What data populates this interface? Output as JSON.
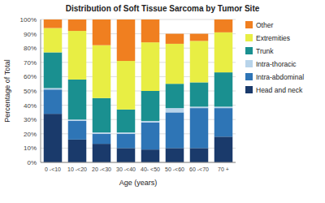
{
  "chart_data": {
    "type": "bar",
    "stacked": true,
    "title": "Distribution of Soft Tissue Sarcoma by Tumor Site",
    "xlabel": "Age (years)",
    "ylabel": "Percentage of Total",
    "categories": [
      "0 -<10",
      "10 -<20",
      "20 -<30",
      "30 -<40",
      "40- <50",
      "50 -<60",
      "60 -<70",
      "70 +"
    ],
    "series": [
      {
        "name": "Head and neck",
        "color": "#1a3a6b",
        "values": [
          34,
          16,
          13,
          10,
          9,
          10,
          10,
          18
        ]
      },
      {
        "name": "Intra-abdominal",
        "color": "#2e75b6",
        "values": [
          17,
          13,
          7,
          10,
          19,
          25,
          28,
          20
        ]
      },
      {
        "name": "Intra-thoracic",
        "color": "#b8d4ea",
        "values": [
          1,
          1,
          1,
          1,
          1,
          3,
          1,
          1
        ]
      },
      {
        "name": "Trunk",
        "color": "#1a9090",
        "values": [
          25,
          28,
          24,
          16,
          21,
          17,
          17,
          24
        ]
      },
      {
        "name": "Extremities",
        "color": "#e8ee44",
        "values": [
          17,
          34,
          37,
          34,
          34,
          28,
          29,
          28
        ]
      },
      {
        "name": "Other",
        "color": "#f07f20",
        "values": [
          6,
          8,
          18,
          29,
          16,
          7,
          5,
          9
        ]
      }
    ],
    "ylim": [
      0,
      100
    ],
    "yticks": [
      {
        "value": 0,
        "label": "0%"
      },
      {
        "value": 10,
        "label": "10%"
      },
      {
        "value": 20,
        "label": "20%"
      },
      {
        "value": 30,
        "label": "30%"
      },
      {
        "value": 40,
        "label": "40%"
      },
      {
        "value": 50,
        "label": "50%"
      },
      {
        "value": 60,
        "label": "60%"
      },
      {
        "value": 70,
        "label": "70%"
      },
      {
        "value": 80,
        "label": "80%"
      },
      {
        "value": 90,
        "label": "90%"
      },
      {
        "value": 100,
        "label": "100%"
      }
    ],
    "grid": true,
    "legend": "right"
  }
}
